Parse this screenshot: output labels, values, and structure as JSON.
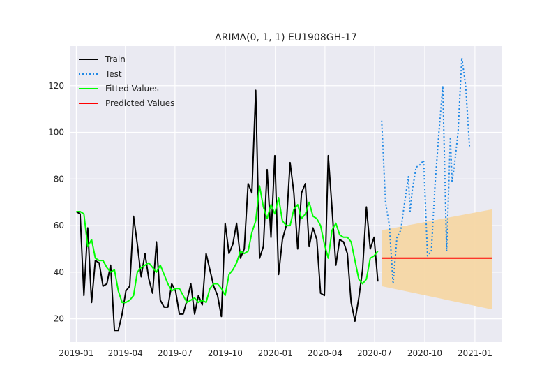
{
  "chart_data": {
    "type": "line",
    "title": "ARIMA(0, 1, 1) EU1908GH-17",
    "xlabel": "",
    "ylabel": "",
    "x_axis": "date",
    "xlim": [
      "2018-12-20",
      "2021-02-20"
    ],
    "ylim": [
      10,
      137
    ],
    "grid": true,
    "legend_position": "top-left",
    "x_ticks": [
      "2019-01",
      "2019-04",
      "2019-07",
      "2019-10",
      "2020-01",
      "2020-04",
      "2020-07",
      "2020-10",
      "2021-01"
    ],
    "y_ticks": [
      20,
      40,
      60,
      80,
      100,
      120
    ],
    "colors": {
      "background": "#eaeaf2",
      "grid": "#ffffff",
      "train": "#000000",
      "test": "#1e88e5",
      "fitted": "#00ff00",
      "predicted": "#ff0000",
      "interval": "#f5d7a4"
    },
    "series": [
      {
        "name": "Train",
        "style": "solid",
        "points": [
          [
            "2019-01-01",
            66
          ],
          [
            "2019-01-08",
            65
          ],
          [
            "2019-01-15",
            30
          ],
          [
            "2019-01-22",
            59
          ],
          [
            "2019-01-29",
            27
          ],
          [
            "2019-02-05",
            45
          ],
          [
            "2019-02-12",
            44
          ],
          [
            "2019-02-19",
            34
          ],
          [
            "2019-02-26",
            35
          ],
          [
            "2019-03-05",
            43
          ],
          [
            "2019-03-12",
            15
          ],
          [
            "2019-03-19",
            15
          ],
          [
            "2019-03-26",
            22
          ],
          [
            "2019-04-02",
            32
          ],
          [
            "2019-04-09",
            34
          ],
          [
            "2019-04-16",
            64
          ],
          [
            "2019-04-23",
            52
          ],
          [
            "2019-04-30",
            38
          ],
          [
            "2019-05-07",
            48
          ],
          [
            "2019-05-14",
            37
          ],
          [
            "2019-05-21",
            31
          ],
          [
            "2019-05-28",
            53
          ],
          [
            "2019-06-04",
            28
          ],
          [
            "2019-06-11",
            25
          ],
          [
            "2019-06-18",
            25
          ],
          [
            "2019-06-25",
            35
          ],
          [
            "2019-07-02",
            32
          ],
          [
            "2019-07-09",
            22
          ],
          [
            "2019-07-16",
            22
          ],
          [
            "2019-07-23",
            28
          ],
          [
            "2019-07-30",
            35
          ],
          [
            "2019-08-06",
            22
          ],
          [
            "2019-08-13",
            30
          ],
          [
            "2019-08-20",
            26
          ],
          [
            "2019-08-27",
            48
          ],
          [
            "2019-09-03",
            41
          ],
          [
            "2019-09-10",
            34
          ],
          [
            "2019-09-17",
            30
          ],
          [
            "2019-09-24",
            21
          ],
          [
            "2019-10-01",
            61
          ],
          [
            "2019-10-08",
            48
          ],
          [
            "2019-10-15",
            52
          ],
          [
            "2019-10-22",
            61
          ],
          [
            "2019-10-29",
            46
          ],
          [
            "2019-11-05",
            50
          ],
          [
            "2019-11-12",
            78
          ],
          [
            "2019-11-19",
            74
          ],
          [
            "2019-11-26",
            118
          ],
          [
            "2019-12-03",
            46
          ],
          [
            "2019-12-10",
            51
          ],
          [
            "2019-12-17",
            84
          ],
          [
            "2019-12-24",
            55
          ],
          [
            "2019-12-31",
            90
          ],
          [
            "2020-01-07",
            39
          ],
          [
            "2020-01-14",
            54
          ],
          [
            "2020-01-21",
            60
          ],
          [
            "2020-01-28",
            87
          ],
          [
            "2020-02-04",
            74
          ],
          [
            "2020-02-11",
            50
          ],
          [
            "2020-02-18",
            74
          ],
          [
            "2020-02-25",
            78
          ],
          [
            "2020-03-03",
            51
          ],
          [
            "2020-03-10",
            59
          ],
          [
            "2020-03-17",
            54
          ],
          [
            "2020-03-24",
            31
          ],
          [
            "2020-03-31",
            30
          ],
          [
            "2020-04-07",
            90
          ],
          [
            "2020-04-14",
            67
          ],
          [
            "2020-04-21",
            43
          ],
          [
            "2020-04-28",
            54
          ],
          [
            "2020-05-05",
            53
          ],
          [
            "2020-05-12",
            48
          ],
          [
            "2020-05-19",
            27
          ],
          [
            "2020-05-26",
            19
          ],
          [
            "2020-06-02",
            29
          ],
          [
            "2020-06-09",
            41
          ],
          [
            "2020-06-16",
            68
          ],
          [
            "2020-06-23",
            50
          ],
          [
            "2020-06-30",
            55
          ],
          [
            "2020-07-07",
            36
          ]
        ]
      },
      {
        "name": "Test",
        "style": "dotted",
        "points": [
          [
            "2020-07-14",
            105
          ],
          [
            "2020-07-21",
            70
          ],
          [
            "2020-07-28",
            60
          ],
          [
            "2020-08-04",
            35
          ],
          [
            "2020-08-11",
            55
          ],
          [
            "2020-08-18",
            58
          ],
          [
            "2020-08-25",
            70
          ],
          [
            "2020-09-01",
            81
          ],
          [
            "2020-09-04",
            66
          ],
          [
            "2020-09-08",
            75
          ],
          [
            "2020-09-15",
            85
          ],
          [
            "2020-09-22",
            86
          ],
          [
            "2020-09-29",
            88
          ],
          [
            "2020-10-06",
            47
          ],
          [
            "2020-10-13",
            49
          ],
          [
            "2020-10-20",
            78
          ],
          [
            "2020-10-27",
            100
          ],
          [
            "2020-11-03",
            120
          ],
          [
            "2020-11-10",
            49
          ],
          [
            "2020-11-17",
            98
          ],
          [
            "2020-11-20",
            79
          ],
          [
            "2020-11-24",
            85
          ],
          [
            "2020-12-01",
            100
          ],
          [
            "2020-12-08",
            132
          ],
          [
            "2020-12-15",
            120
          ],
          [
            "2020-12-22",
            94
          ]
        ]
      },
      {
        "name": "Fitted Values",
        "style": "solid",
        "points": [
          [
            "2019-01-01",
            66
          ],
          [
            "2019-01-08",
            66
          ],
          [
            "2019-01-15",
            65
          ],
          [
            "2019-01-22",
            51
          ],
          [
            "2019-01-29",
            54
          ],
          [
            "2019-02-05",
            46
          ],
          [
            "2019-02-12",
            45
          ],
          [
            "2019-02-19",
            45
          ],
          [
            "2019-02-26",
            42
          ],
          [
            "2019-03-05",
            40
          ],
          [
            "2019-03-12",
            41
          ],
          [
            "2019-03-19",
            32
          ],
          [
            "2019-03-26",
            27
          ],
          [
            "2019-04-02",
            27
          ],
          [
            "2019-04-09",
            28
          ],
          [
            "2019-04-16",
            30
          ],
          [
            "2019-04-23",
            40
          ],
          [
            "2019-04-30",
            42
          ],
          [
            "2019-05-07",
            43
          ],
          [
            "2019-05-14",
            44
          ],
          [
            "2019-05-21",
            42
          ],
          [
            "2019-05-28",
            40
          ],
          [
            "2019-06-04",
            43
          ],
          [
            "2019-06-11",
            39
          ],
          [
            "2019-06-18",
            35
          ],
          [
            "2019-06-25",
            32
          ],
          [
            "2019-07-02",
            33
          ],
          [
            "2019-07-09",
            33
          ],
          [
            "2019-07-16",
            30
          ],
          [
            "2019-07-23",
            27
          ],
          [
            "2019-07-30",
            28
          ],
          [
            "2019-08-06",
            29
          ],
          [
            "2019-08-13",
            27
          ],
          [
            "2019-08-20",
            28
          ],
          [
            "2019-08-27",
            27
          ],
          [
            "2019-09-03",
            33
          ],
          [
            "2019-09-10",
            35
          ],
          [
            "2019-09-17",
            35
          ],
          [
            "2019-09-24",
            33
          ],
          [
            "2019-10-01",
            30
          ],
          [
            "2019-10-08",
            39
          ],
          [
            "2019-10-15",
            41
          ],
          [
            "2019-10-22",
            44
          ],
          [
            "2019-10-29",
            49
          ],
          [
            "2019-11-05",
            48
          ],
          [
            "2019-11-12",
            49
          ],
          [
            "2019-11-19",
            57
          ],
          [
            "2019-11-26",
            62
          ],
          [
            "2019-12-03",
            77
          ],
          [
            "2019-12-10",
            68
          ],
          [
            "2019-12-17",
            63
          ],
          [
            "2019-12-24",
            69
          ],
          [
            "2019-12-31",
            65
          ],
          [
            "2020-01-07",
            72
          ],
          [
            "2020-01-14",
            62
          ],
          [
            "2020-01-21",
            60
          ],
          [
            "2020-01-28",
            60
          ],
          [
            "2020-02-04",
            67
          ],
          [
            "2020-02-11",
            69
          ],
          [
            "2020-02-18",
            63
          ],
          [
            "2020-02-25",
            65
          ],
          [
            "2020-03-03",
            70
          ],
          [
            "2020-03-10",
            64
          ],
          [
            "2020-03-17",
            63
          ],
          [
            "2020-03-24",
            60
          ],
          [
            "2020-03-31",
            52
          ],
          [
            "2020-04-07",
            46
          ],
          [
            "2020-04-14",
            58
          ],
          [
            "2020-04-21",
            61
          ],
          [
            "2020-04-28",
            56
          ],
          [
            "2020-05-05",
            55
          ],
          [
            "2020-05-12",
            55
          ],
          [
            "2020-05-19",
            53
          ],
          [
            "2020-05-26",
            45
          ],
          [
            "2020-06-02",
            37
          ],
          [
            "2020-06-09",
            35
          ],
          [
            "2020-06-16",
            37
          ],
          [
            "2020-06-23",
            46
          ],
          [
            "2020-06-30",
            47
          ],
          [
            "2020-07-07",
            49
          ]
        ]
      },
      {
        "name": "Predicted Values",
        "style": "solid",
        "points": [
          [
            "2020-07-14",
            46
          ],
          [
            "2021-02-02",
            46
          ]
        ]
      }
    ],
    "confidence_interval": {
      "x": [
        "2020-07-14",
        "2021-02-02"
      ],
      "lower": [
        34,
        24
      ],
      "upper": [
        58,
        67
      ]
    }
  }
}
